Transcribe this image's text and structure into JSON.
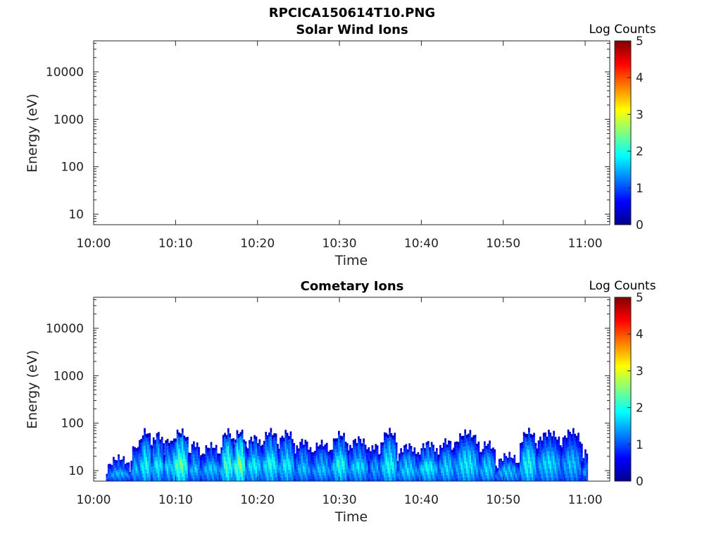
{
  "figure": {
    "title": "RPCICA150614T10.PNG"
  },
  "colormap": [
    "#00008f",
    "#0000ff",
    "#0080ff",
    "#00ffff",
    "#80ff80",
    "#ffff00",
    "#ff8000",
    "#ff0000",
    "#800000"
  ],
  "chart_data": [
    {
      "type": "heatmap",
      "title": "Solar Wind Ions",
      "xlabel": "Time",
      "ylabel": "Energy (eV)",
      "x_tick_labels": [
        "10:00",
        "10:10",
        "10:20",
        "10:30",
        "10:40",
        "10:50",
        "11:00"
      ],
      "x_range": [
        "10:00",
        "11:03"
      ],
      "y_scale": "log",
      "y_range": [
        6,
        45000
      ],
      "y_tick_labels": [
        "10",
        "100",
        "1000",
        "10000"
      ],
      "colorbar": {
        "label": "Log Counts",
        "range": [
          0,
          5
        ],
        "tick_labels": [
          "0",
          "1",
          "2",
          "3",
          "4",
          "5"
        ]
      },
      "data_note": "",
      "blocks": []
    },
    {
      "type": "heatmap",
      "title": "Cometary Ions",
      "xlabel": "Time",
      "ylabel": "Energy (eV)",
      "x_tick_labels": [
        "10:00",
        "10:10",
        "10:20",
        "10:30",
        "10:40",
        "10:50",
        "11:00"
      ],
      "x_range": [
        "10:00",
        "11:03"
      ],
      "y_scale": "log",
      "y_range": [
        6,
        45000
      ],
      "y_tick_labels": [
        "10",
        "100",
        "1000",
        "10000"
      ],
      "colorbar": {
        "label": "Log Counts",
        "range": [
          0,
          5
        ],
        "tick_labels": [
          "0",
          "1",
          "2",
          "3",
          "4",
          "5"
        ]
      },
      "blocks": [
        {
          "t0": 1.5,
          "t1": 4.5,
          "e_top": 22,
          "peak": 1.2
        },
        {
          "t0": 4.5,
          "t1": 5.5,
          "e_top": 40,
          "peak": 1.3
        },
        {
          "t0": 5.5,
          "t1": 7.0,
          "e_top": 80,
          "peak": 1.6
        },
        {
          "t0": 7.0,
          "t1": 8.5,
          "e_top": 70,
          "peak": 1.5
        },
        {
          "t0": 8.5,
          "t1": 9.5,
          "e_top": 55,
          "peak": 1.4
        },
        {
          "t0": 9.5,
          "t1": 11.5,
          "e_top": 80,
          "peak": 1.9
        },
        {
          "t0": 11.5,
          "t1": 13.0,
          "e_top": 45,
          "peak": 1.3
        },
        {
          "t0": 13.0,
          "t1": 15.5,
          "e_top": 40,
          "peak": 1.3
        },
        {
          "t0": 15.5,
          "t1": 17.0,
          "e_top": 80,
          "peak": 1.8
        },
        {
          "t0": 17.0,
          "t1": 18.5,
          "e_top": 80,
          "peak": 2.0
        },
        {
          "t0": 18.5,
          "t1": 20.5,
          "e_top": 60,
          "peak": 1.5
        },
        {
          "t0": 20.5,
          "t1": 22.5,
          "e_top": 80,
          "peak": 1.6
        },
        {
          "t0": 22.5,
          "t1": 24.5,
          "e_top": 75,
          "peak": 1.5
        },
        {
          "t0": 24.5,
          "t1": 26.5,
          "e_top": 50,
          "peak": 1.3
        },
        {
          "t0": 26.5,
          "t1": 29.0,
          "e_top": 45,
          "peak": 1.3
        },
        {
          "t0": 29.0,
          "t1": 31.0,
          "e_top": 70,
          "peak": 1.6
        },
        {
          "t0": 31.0,
          "t1": 33.5,
          "e_top": 55,
          "peak": 1.4
        },
        {
          "t0": 33.5,
          "t1": 35.0,
          "e_top": 40,
          "peak": 1.2
        },
        {
          "t0": 35.0,
          "t1": 37.0,
          "e_top": 80,
          "peak": 1.6
        },
        {
          "t0": 37.0,
          "t1": 39.5,
          "e_top": 40,
          "peak": 1.4
        },
        {
          "t0": 39.5,
          "t1": 42.0,
          "e_top": 45,
          "peak": 1.5
        },
        {
          "t0": 42.0,
          "t1": 44.0,
          "e_top": 50,
          "peak": 1.4
        },
        {
          "t0": 44.0,
          "t1": 47.0,
          "e_top": 75,
          "peak": 1.5
        },
        {
          "t0": 47.0,
          "t1": 49.0,
          "e_top": 45,
          "peak": 1.4
        },
        {
          "t0": 49.0,
          "t1": 52.0,
          "e_top": 25,
          "peak": 1.3
        },
        {
          "t0": 52.0,
          "t1": 54.0,
          "e_top": 80,
          "peak": 1.6
        },
        {
          "t0": 54.0,
          "t1": 57.0,
          "e_top": 75,
          "peak": 1.4
        },
        {
          "t0": 57.0,
          "t1": 59.5,
          "e_top": 80,
          "peak": 1.3
        },
        {
          "t0": 59.5,
          "t1": 60.3,
          "e_top": 30,
          "peak": 1.1
        }
      ]
    }
  ]
}
